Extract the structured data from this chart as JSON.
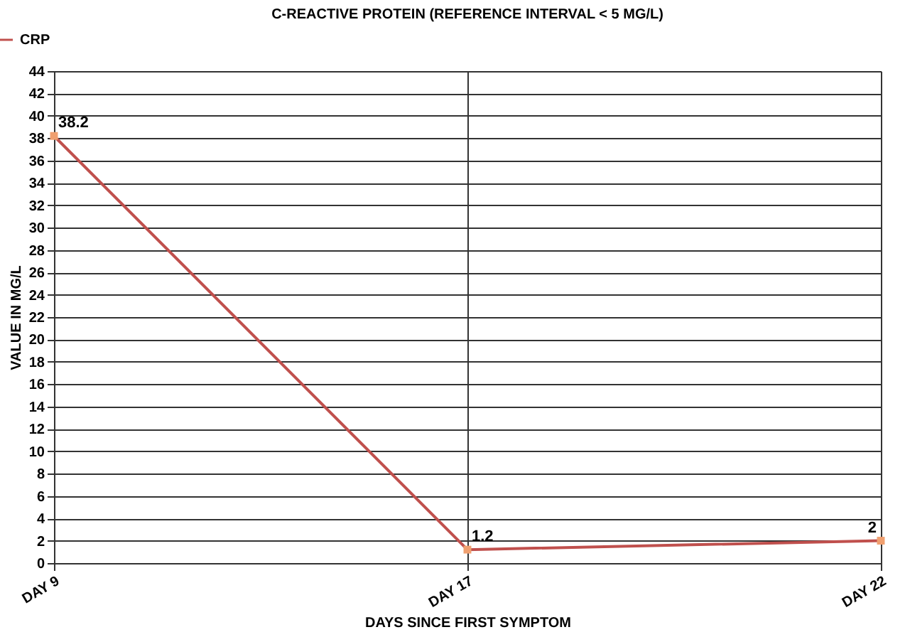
{
  "chart_data": {
    "type": "line",
    "title": "C-REACTIVE PROTEIN (REFERENCE INTERVAL < 5 MG/L)",
    "xlabel": "DAYS SINCE FIRST SYMPTOM",
    "ylabel": "VALUE IN MG/L",
    "categories": [
      "DAY 9",
      "DAY 17",
      "DAY 22"
    ],
    "series": [
      {
        "name": "CRP",
        "color": "#c0504d",
        "values": [
          38.2,
          1.2,
          2
        ]
      }
    ],
    "ylim": [
      0,
      44
    ],
    "yticks": [
      0,
      2,
      4,
      6,
      8,
      10,
      12,
      14,
      16,
      18,
      20,
      22,
      24,
      26,
      28,
      30,
      32,
      34,
      36,
      38,
      40,
      42,
      44
    ],
    "grid": true,
    "legend": "top left",
    "marker": "square",
    "line_style": "solid",
    "data_labels": true
  }
}
